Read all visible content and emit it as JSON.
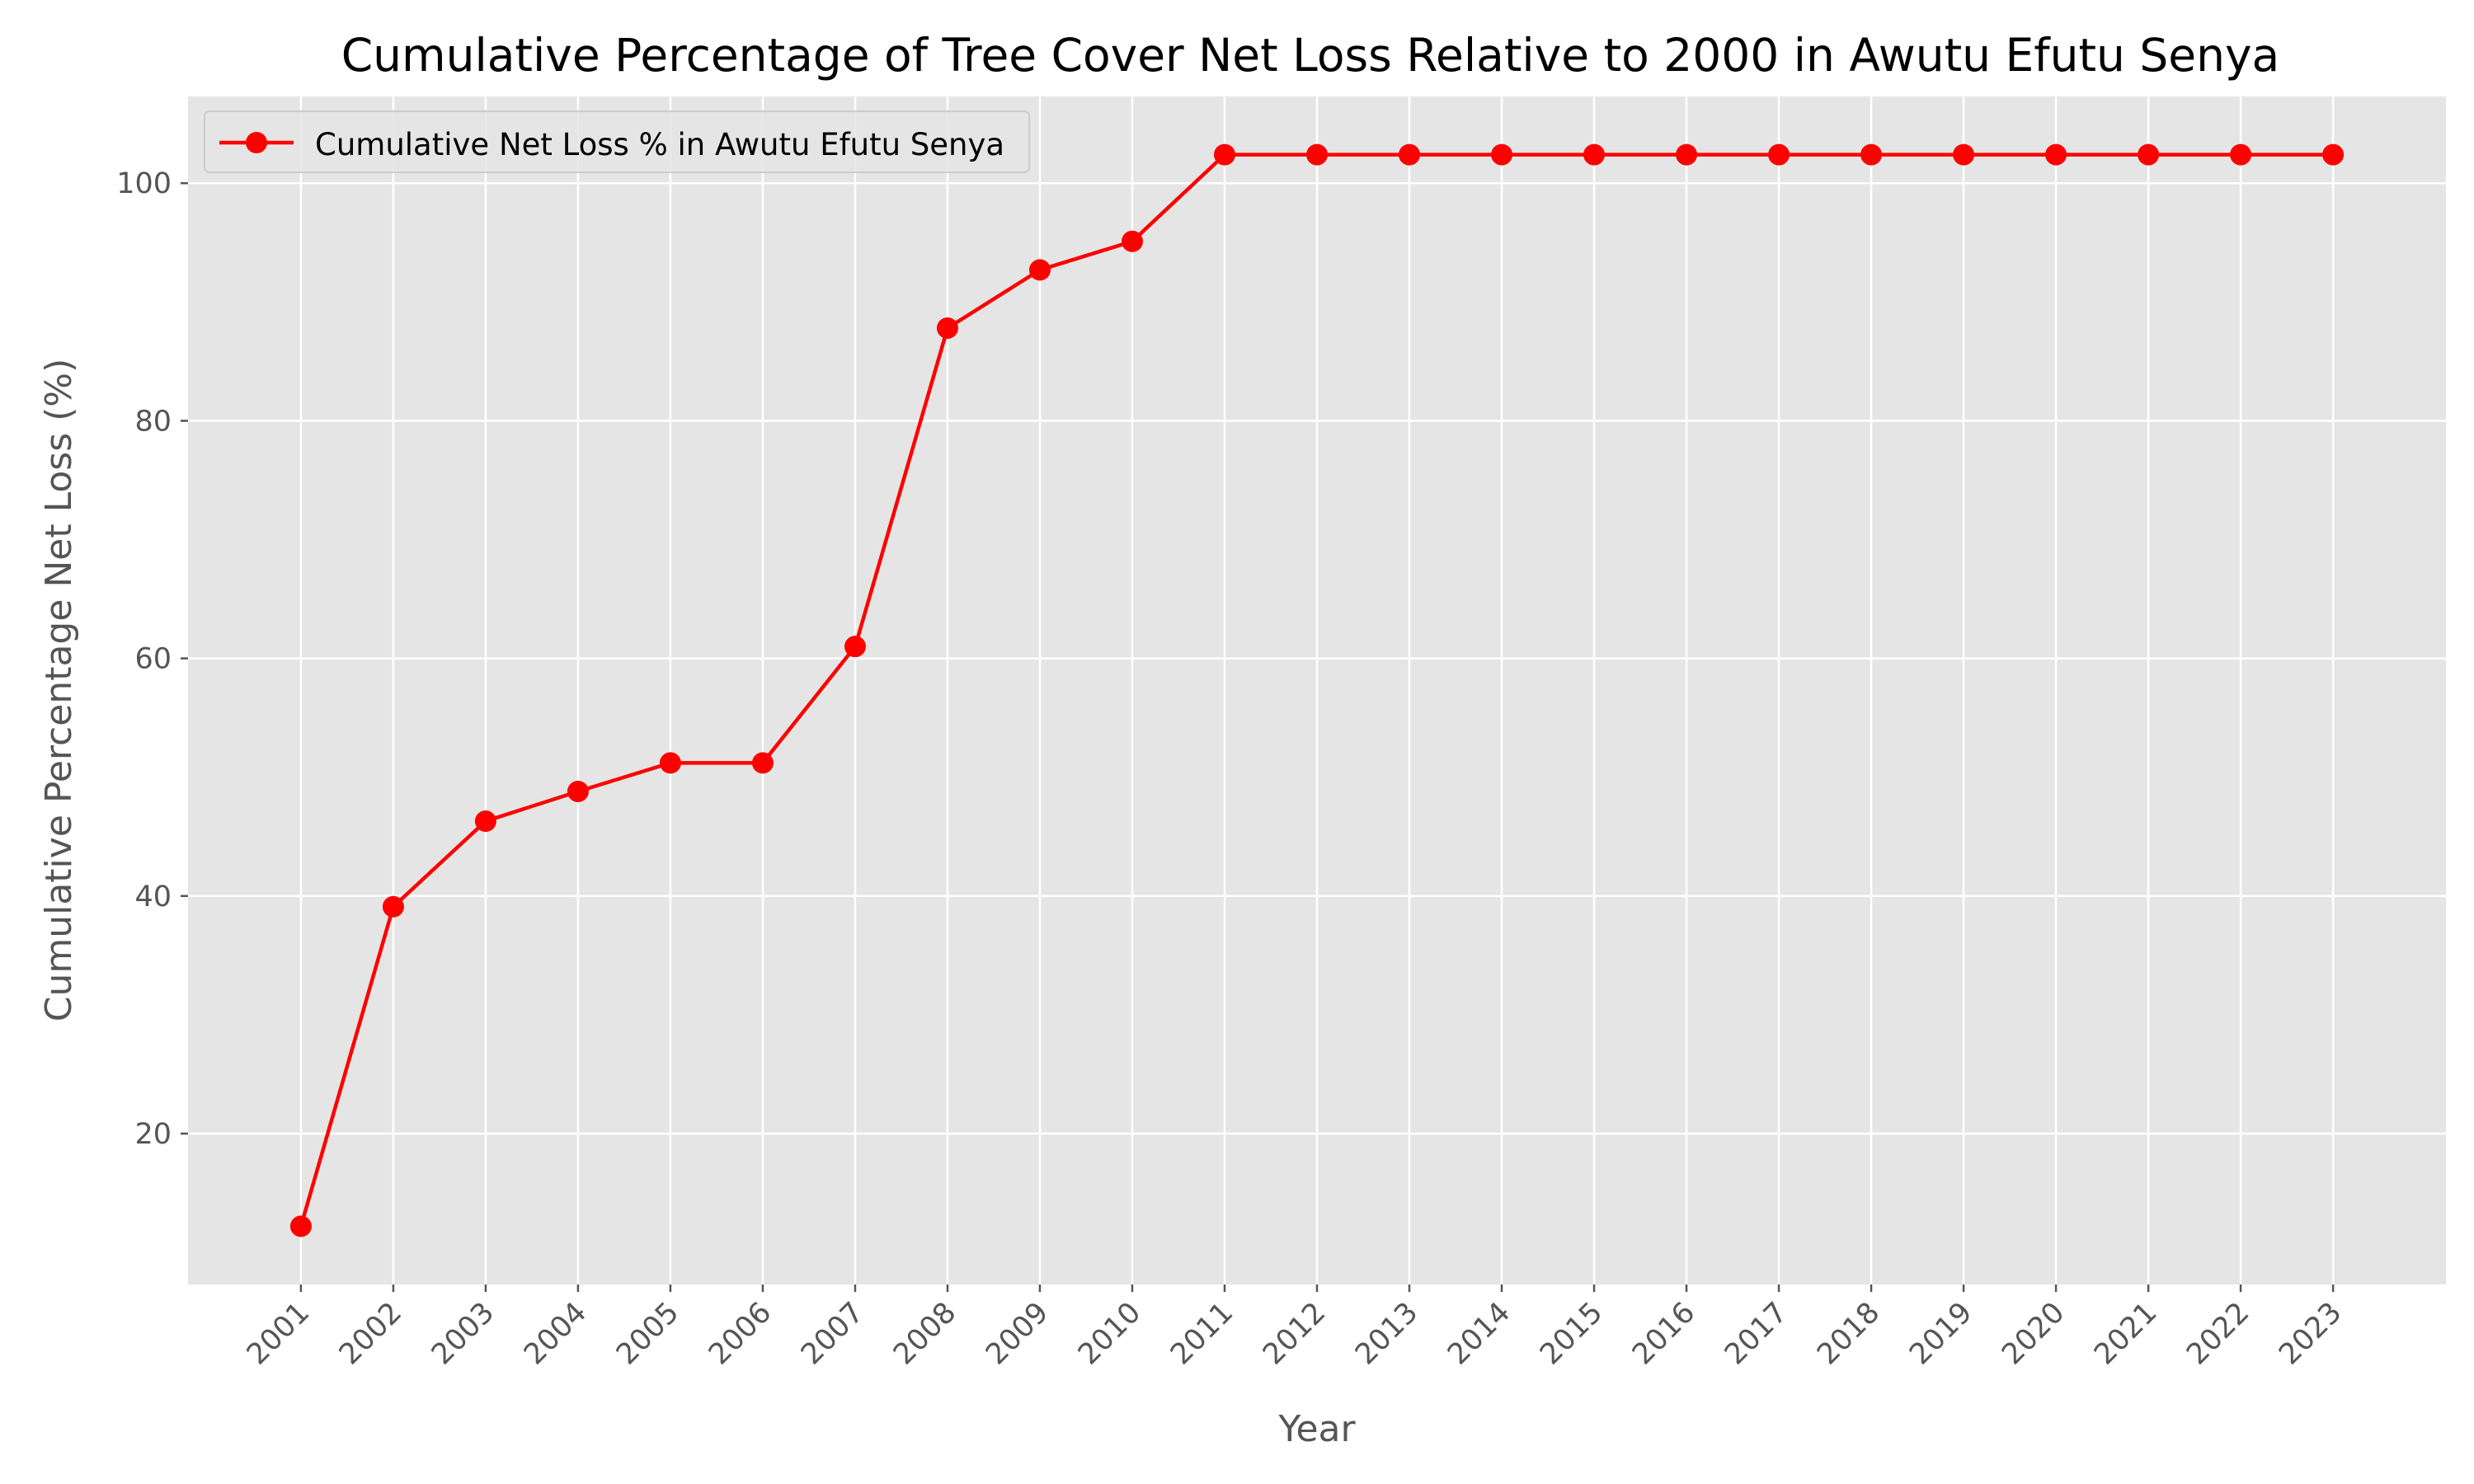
{
  "chart_data": {
    "type": "line",
    "title": "Cumulative Percentage of Tree Cover Net Loss Relative to 2000 in Awutu Efutu Senya",
    "xlabel": "Year",
    "ylabel": "Cumulative Percentage Net Loss (%)",
    "x": [
      "2001",
      "2002",
      "2003",
      "2004",
      "2005",
      "2006",
      "2007",
      "2008",
      "2009",
      "2010",
      "2011",
      "2012",
      "2013",
      "2014",
      "2015",
      "2016",
      "2017",
      "2018",
      "2019",
      "2020",
      "2021",
      "2022",
      "2023"
    ],
    "series": [
      {
        "name": "Cumulative Net Loss % in Awutu Efutu Senya",
        "color": "#ff0000",
        "marker": "circle",
        "values": [
          12.2,
          39.1,
          46.3,
          48.8,
          51.2,
          51.2,
          61.0,
          87.8,
          92.7,
          95.1,
          102.4,
          102.4,
          102.4,
          102.4,
          102.4,
          102.4,
          102.4,
          102.4,
          102.4,
          102.4,
          102.4,
          102.4,
          102.4
        ]
      }
    ],
    "yticks": [
      20,
      40,
      60,
      80,
      100
    ],
    "ylim": [
      7.3,
      107.3
    ],
    "grid": true,
    "legend_position": "top-left",
    "style": {
      "plot_background": "#e5e5e5",
      "grid_color": "#ffffff",
      "text_color": "#555555"
    }
  }
}
